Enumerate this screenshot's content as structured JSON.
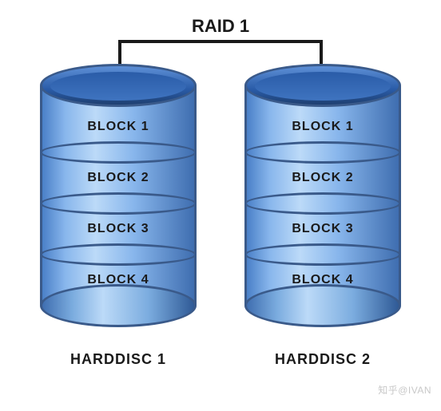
{
  "title": "RAID 1",
  "title_fontsize": 22,
  "title_color": "#1a1a1a",
  "connector_color": "#1a1a1a",
  "disks": [
    {
      "name": "HARDDISC 1",
      "blocks": [
        "BLOCK 1",
        "BLOCK 2",
        "BLOCK 3",
        "BLOCK 4"
      ]
    },
    {
      "name": "HARDDISC 2",
      "blocks": [
        "BLOCK 1",
        "BLOCK 2",
        "BLOCK 3",
        "BLOCK 4"
      ]
    }
  ],
  "styling": {
    "cylinder_width": 196,
    "cylinder_top_gradient": "linear-gradient(180deg, #5d8fd6 0%, #2a5ca8 60%, #1e3f70 100%)",
    "cylinder_top_inner_gradient": "linear-gradient(180deg, #2a5ca8 0%, #3f74c0 100%)",
    "segment_gradient": "linear-gradient(90deg, #4a80c8 0%, #88b6ec 15%, #bcdaf8 35%, #88b6ec 60%, #3f6eb0 100%)",
    "divider_gradient": "linear-gradient(90deg, #4a80c8 0%, #88b6ec 15%, #bcdaf8 35%, #88b6ec 60%, #3f6eb0 100%)",
    "border_color": "#3a5a8a",
    "block_label_fontsize": 16,
    "block_label_color": "#1a1a1a",
    "disk_name_fontsize": 18,
    "disk_name_color": "#1a1a1a",
    "bottom_cap_gradient": "linear-gradient(90deg, #3f6eb0 0%, #7bacdf 20%, #bcdaf8 40%, #7bacdf 70%, #2f5a96 100%)"
  },
  "watermark": "知乎@IVAN"
}
